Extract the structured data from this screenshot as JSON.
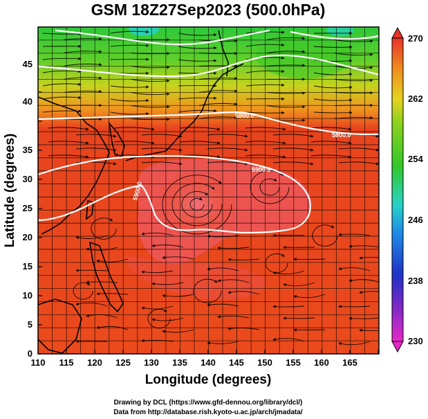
{
  "title": "GSM 18Z27Sep2023 (500.0hPa)",
  "xlabel": "Longitude (degrees)",
  "ylabel": "Latitude  (degrees)",
  "x_ticks": [
    "110",
    "115",
    "120",
    "125",
    "130",
    "135",
    "140",
    "145",
    "150",
    "155",
    "160",
    "165"
  ],
  "y_ticks": [
    "0",
    "5",
    "10",
    "15",
    "20",
    "25",
    "30",
    "35",
    "40",
    "45"
  ],
  "colorbar": {
    "ticks": [
      "230",
      "238",
      "246",
      "254",
      "262",
      "270"
    ],
    "min": 230,
    "max": 270
  },
  "contour_labels": [
    "5800.0",
    "5800.0",
    "5900.0",
    "5900.0"
  ],
  "credits": {
    "line1": "Drawing by DCL (https://www.gfd-dennou.org/library/dcl/)",
    "line2": "Data from http://database.rish.kyoto-u.ac.jp/arch/jmadata/"
  },
  "colors": {
    "warm_max": "#e8202a",
    "warm": "#f05a1e",
    "orange": "#f59a1e",
    "yellow": "#e8d21e",
    "green": "#3cc828",
    "cyan": "#28d2c8",
    "blue": "#1e64e6",
    "purple": "#8c28c8",
    "magenta": "#e628c8",
    "pink_high": "#ee5a62"
  }
}
